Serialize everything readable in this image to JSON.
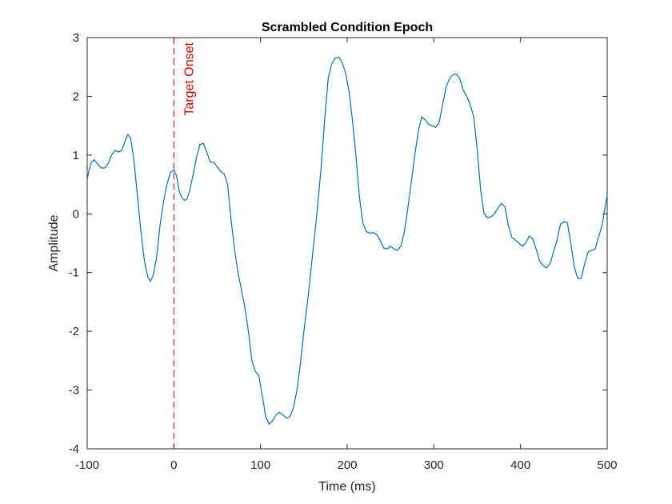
{
  "chart_data": {
    "type": "line",
    "title": "Scrambled Condition Epoch",
    "xlabel": "Time (ms)",
    "ylabel": "Amplitude",
    "x": [
      -100,
      -96,
      -92,
      -88,
      -84,
      -80,
      -76,
      -72,
      -68,
      -64,
      -60,
      -56,
      -53,
      -50,
      -46,
      -42,
      -38,
      -34,
      -30,
      -27,
      -24,
      -20,
      -16,
      -12,
      -8,
      -4,
      0,
      3,
      6,
      9,
      12,
      15,
      18,
      22,
      26,
      30,
      34,
      38,
      42,
      46,
      50,
      54,
      58,
      62,
      66,
      70,
      74,
      78,
      82,
      86,
      90,
      94,
      98,
      102,
      106,
      110,
      114,
      118,
      122,
      126,
      130,
      134,
      138,
      142,
      146,
      150,
      155,
      160,
      165,
      170,
      174,
      178,
      182,
      186,
      190,
      194,
      198,
      202,
      206,
      210,
      214,
      218,
      222,
      226,
      230,
      234,
      238,
      242,
      246,
      250,
      254,
      258,
      262,
      266,
      270,
      274,
      278,
      282,
      286,
      290,
      294,
      298,
      302,
      306,
      310,
      314,
      318,
      322,
      326,
      330,
      334,
      338,
      342,
      346,
      350,
      354,
      358,
      362,
      366,
      370,
      374,
      378,
      382,
      386,
      390,
      394,
      398,
      402,
      406,
      410,
      414,
      418,
      422,
      426,
      430,
      434,
      438,
      442,
      446,
      450,
      454,
      458,
      462,
      466,
      470,
      474,
      478,
      482,
      486,
      490,
      494,
      498,
      500
    ],
    "series": [
      {
        "color": "#0072bd",
        "values": [
          0.6,
          0.85,
          0.92,
          0.85,
          0.78,
          0.78,
          0.85,
          1.0,
          1.08,
          1.05,
          1.08,
          1.25,
          1.35,
          1.3,
          0.9,
          0.3,
          -0.3,
          -0.8,
          -1.08,
          -1.15,
          -1.05,
          -0.75,
          -0.2,
          0.2,
          0.5,
          0.7,
          0.75,
          0.65,
          0.4,
          0.28,
          0.23,
          0.25,
          0.38,
          0.65,
          0.95,
          1.18,
          1.2,
          1.05,
          0.88,
          0.88,
          0.8,
          0.72,
          0.68,
          0.5,
          -0.1,
          -0.6,
          -1.0,
          -1.3,
          -1.6,
          -2.0,
          -2.5,
          -2.68,
          -2.75,
          -3.1,
          -3.45,
          -3.58,
          -3.52,
          -3.42,
          -3.38,
          -3.42,
          -3.48,
          -3.45,
          -3.3,
          -3.0,
          -2.55,
          -2.0,
          -1.4,
          -0.7,
          0.0,
          0.8,
          1.6,
          2.3,
          2.55,
          2.65,
          2.67,
          2.58,
          2.4,
          2.1,
          1.6,
          1.0,
          0.3,
          -0.15,
          -0.3,
          -0.33,
          -0.32,
          -0.35,
          -0.45,
          -0.58,
          -0.6,
          -0.55,
          -0.6,
          -0.62,
          -0.55,
          -0.3,
          0.1,
          0.55,
          1.0,
          1.4,
          1.65,
          1.6,
          1.52,
          1.5,
          1.47,
          1.55,
          1.85,
          2.15,
          2.3,
          2.37,
          2.38,
          2.3,
          2.1,
          2.0,
          1.85,
          1.65,
          1.1,
          0.4,
          0.0,
          -0.07,
          -0.05,
          0.0,
          0.1,
          0.18,
          0.12,
          -0.2,
          -0.4,
          -0.45,
          -0.5,
          -0.55,
          -0.5,
          -0.38,
          -0.42,
          -0.6,
          -0.8,
          -0.88,
          -0.92,
          -0.85,
          -0.65,
          -0.45,
          -0.18,
          -0.13,
          -0.15,
          -0.5,
          -0.9,
          -1.1,
          -1.1,
          -0.85,
          -0.65,
          -0.62,
          -0.6,
          -0.4,
          -0.2,
          0.15,
          0.32
        ]
      }
    ],
    "annotations": [
      {
        "text": "Target Onset",
        "x": 0,
        "color": "#d00000"
      }
    ],
    "xlim": [
      -100,
      500
    ],
    "xticks": [
      -100,
      0,
      100,
      200,
      300,
      400,
      500
    ],
    "ylim": [
      -4,
      3
    ],
    "yticks": [
      -4,
      -3,
      -2,
      -1,
      0,
      1,
      2,
      3
    ]
  }
}
